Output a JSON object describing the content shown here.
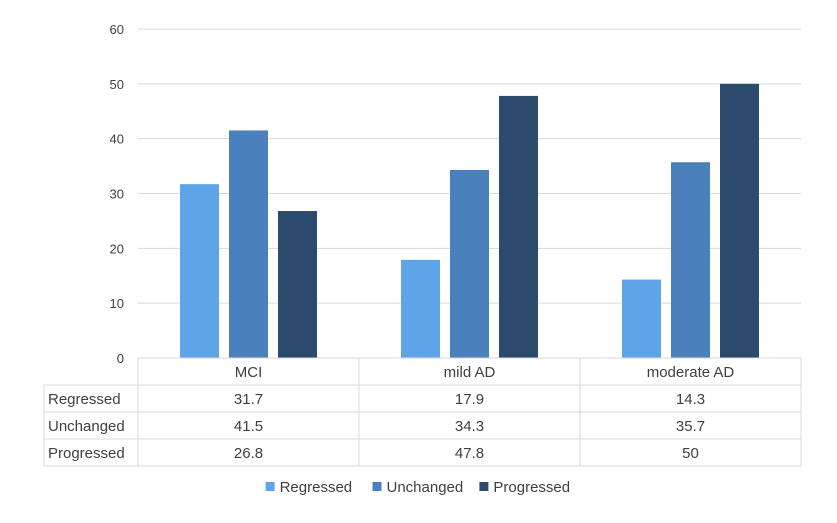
{
  "chart_data": {
    "type": "bar",
    "categories": [
      "MCI",
      "mild AD",
      "moderate AD"
    ],
    "series": [
      {
        "name": "Regressed",
        "color": "#5ea4e8",
        "values": [
          31.7,
          17.9,
          14.3
        ]
      },
      {
        "name": "Unchanged",
        "color": "#4a80bb",
        "values": [
          41.5,
          34.3,
          35.7
        ]
      },
      {
        "name": "Progressed",
        "color": "#2c4a6c",
        "values": [
          26.8,
          47.8,
          50
        ]
      }
    ],
    "ylim": [
      0,
      60
    ],
    "yticks": [
      0,
      10,
      20,
      30,
      40,
      50,
      60
    ],
    "grid": true,
    "data_table": true,
    "legend_position": "bottom"
  }
}
